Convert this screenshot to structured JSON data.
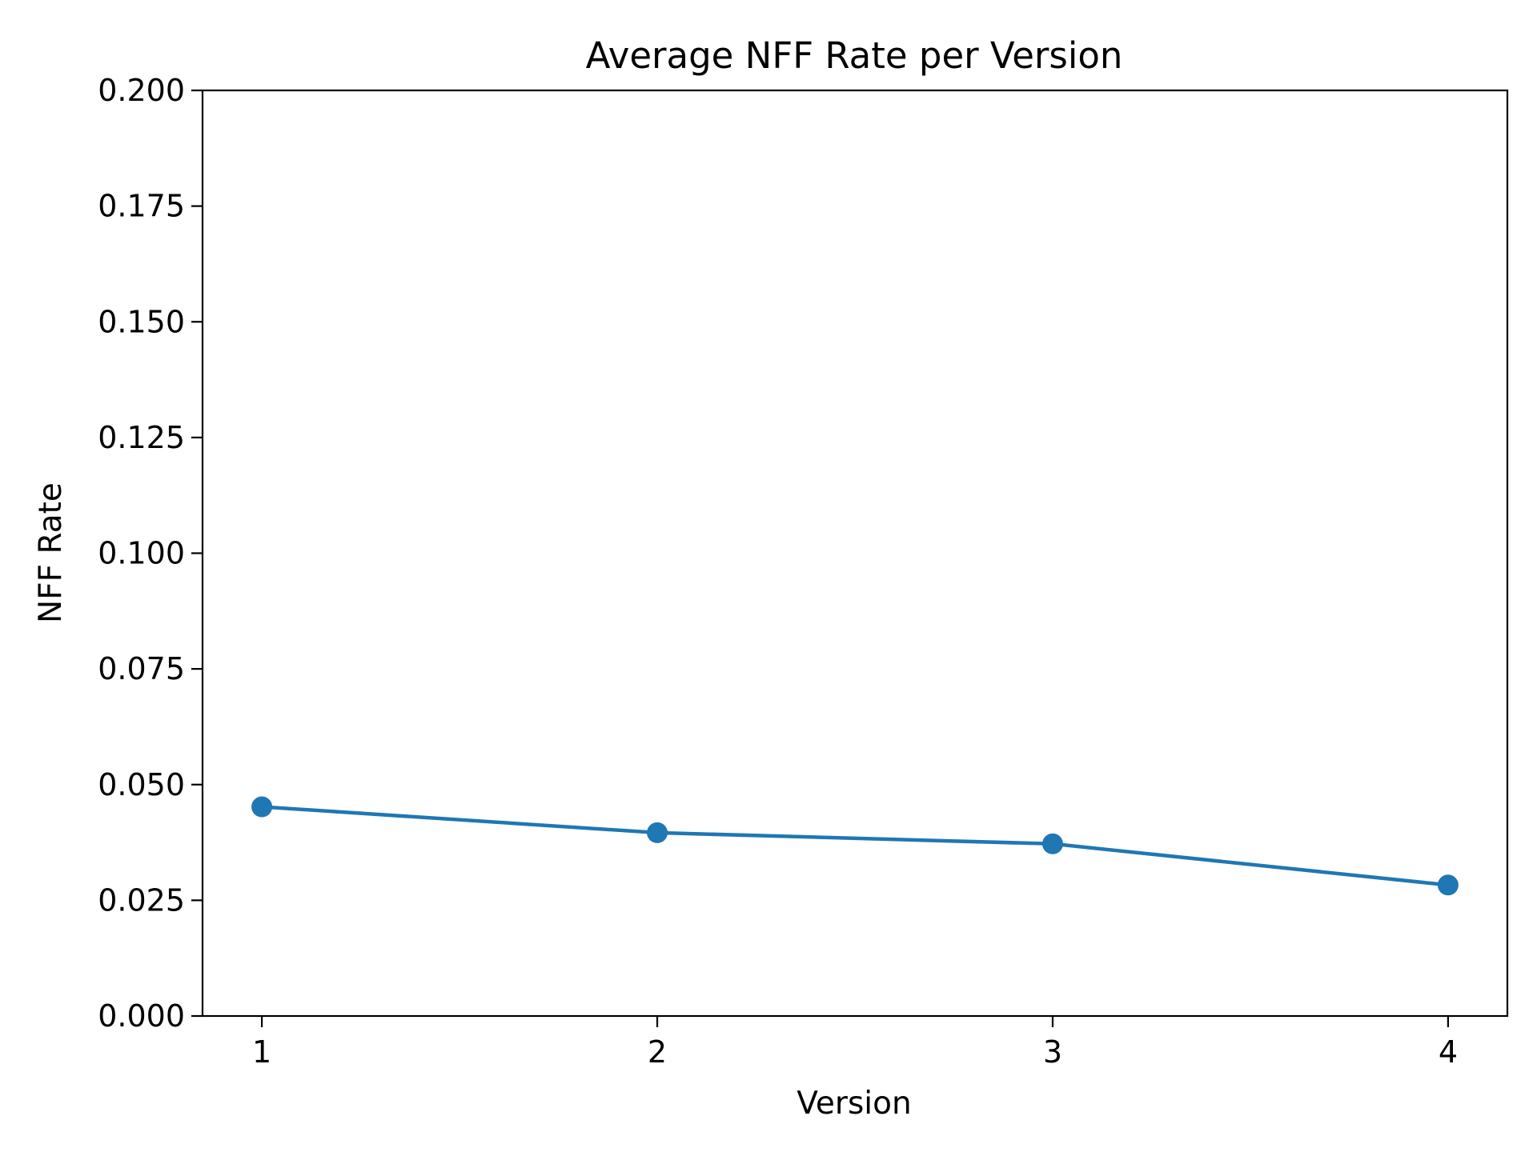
{
  "chart_data": {
    "type": "line",
    "title": "Average NFF Rate per Version",
    "xlabel": "Version",
    "ylabel": "NFF Rate",
    "x": [
      1,
      2,
      3,
      4
    ],
    "x_tick_labels": [
      "1",
      "2",
      "3",
      "4"
    ],
    "y_ticks": [
      0.0,
      0.025,
      0.05,
      0.075,
      0.1,
      0.125,
      0.15,
      0.175,
      0.2
    ],
    "y_tick_labels": [
      "0.000",
      "0.025",
      "0.050",
      "0.075",
      "0.100",
      "0.125",
      "0.150",
      "0.175",
      "0.200"
    ],
    "ylim": [
      0.0,
      0.2
    ],
    "xlim": [
      0.85,
      4.15
    ],
    "grid": false,
    "legend": "none",
    "series": [
      {
        "values": [
          0.0452,
          0.0396,
          0.0372,
          0.0283
        ],
        "color": "#1f77b4",
        "marker": "circle"
      }
    ]
  }
}
